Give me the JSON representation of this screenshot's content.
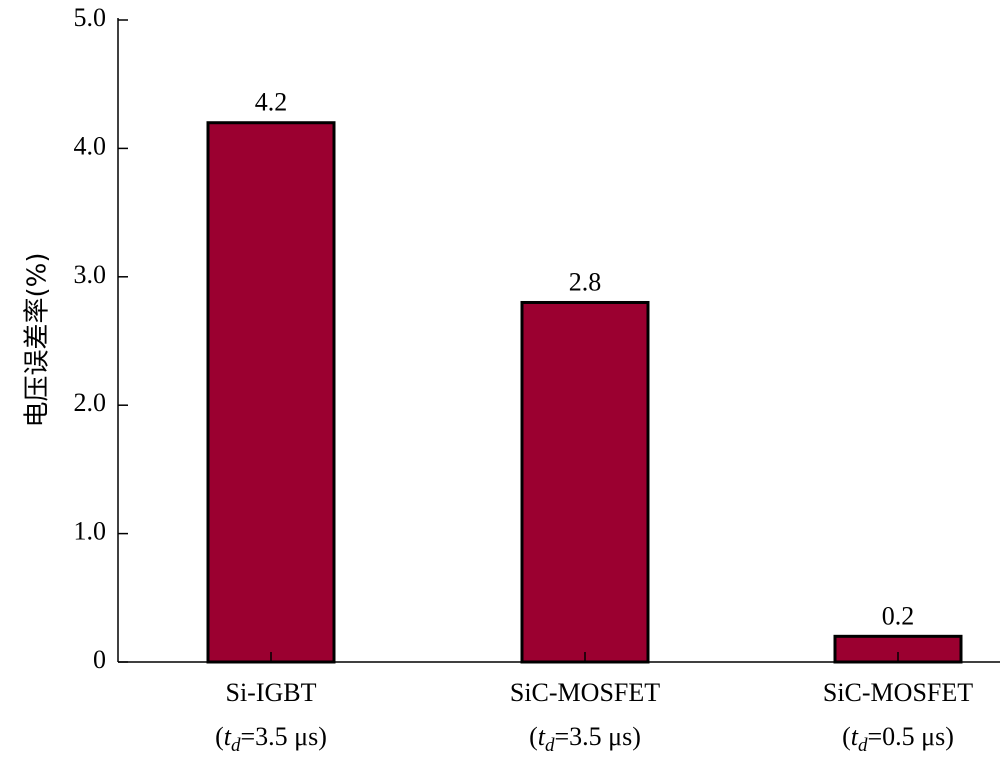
{
  "chart_data": {
    "type": "bar",
    "title": "",
    "ylabel": "电压误差率(%)",
    "xlabel": "",
    "ylim": [
      0,
      5.0
    ],
    "yticks": [
      {
        "value": 0,
        "label": "0"
      },
      {
        "value": 1.0,
        "label": "1.0"
      },
      {
        "value": 2.0,
        "label": "2.0"
      },
      {
        "value": 3.0,
        "label": "3.0"
      },
      {
        "value": 4.0,
        "label": "4.0"
      },
      {
        "value": 5.0,
        "label": "5.0"
      }
    ],
    "categories": [
      {
        "line1": "Si-IGBT",
        "td_prefix": "(t",
        "td_sub": "d",
        "td_suffix": "=3.5 μs)"
      },
      {
        "line1": "SiC-MOSFET",
        "td_prefix": "(t",
        "td_sub": "d",
        "td_suffix": "=3.5 μs)"
      },
      {
        "line1": "SiC-MOSFET",
        "td_prefix": "(t",
        "td_sub": "d",
        "td_suffix": "=0.5 μs)"
      }
    ],
    "values": [
      4.2,
      2.8,
      0.2
    ],
    "value_labels": [
      "4.2",
      "2.8",
      "0.2"
    ],
    "bar_color": "#9b0030",
    "bar_edge_color": "#000000",
    "grid": false,
    "legend": "none"
  }
}
